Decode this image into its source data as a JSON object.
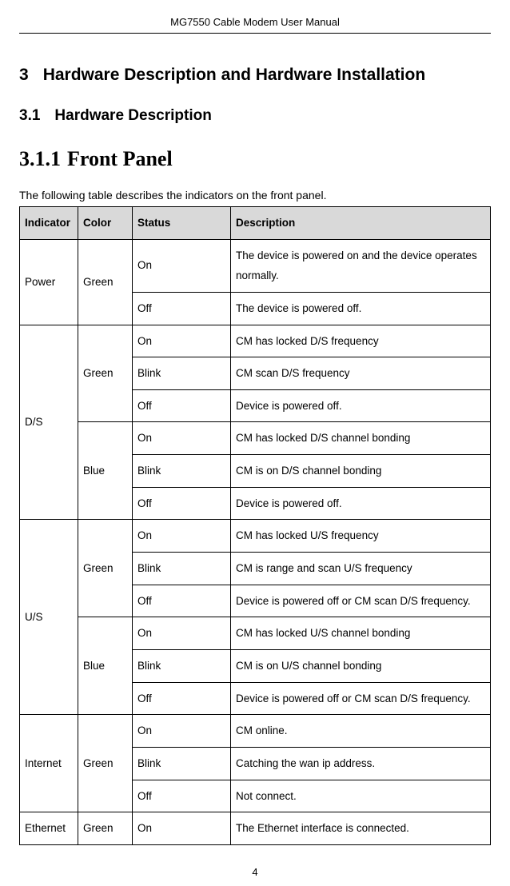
{
  "header": "MG7550 Cable Modem User Manual",
  "section_number": "3",
  "section_title": "Hardware Description and Hardware Installation",
  "subsection_number": "3.1",
  "subsection_title": "Hardware Description",
  "subsubsection_number": "3.1.1",
  "subsubsection_title": "Front Panel",
  "intro_text": "The following table describes the indicators on the front panel.",
  "columns": {
    "indicator": "Indicator",
    "color": "Color",
    "status": "Status",
    "description": "Description"
  },
  "cells": {
    "power": "Power",
    "green": "Green",
    "blue": "Blue",
    "ds": "D/S",
    "us": "U/S",
    "internet": "Internet",
    "ethernet": "Ethernet",
    "on": "On",
    "off": "Off",
    "blink": "Blink",
    "d_power_on": "The device is powered on and the device operates normally.",
    "d_power_off": "The device is powered off.",
    "d_ds_g_on": "CM has locked D/S frequency",
    "d_ds_g_blink": "CM scan D/S frequency",
    "d_ds_g_off": "Device is powered off.",
    "d_ds_b_on": "CM has locked D/S channel bonding",
    "d_ds_b_blink": "CM is on D/S channel bonding",
    "d_ds_b_off": "Device is powered off.",
    "d_us_g_on": "CM has locked U/S frequency",
    "d_us_g_blink": "CM is range and scan U/S frequency",
    "d_us_g_off": "Device is powered off or CM scan D/S frequency.",
    "d_us_b_on": "CM has locked U/S channel bonding",
    "d_us_b_blink": "CM is on U/S channel bonding",
    "d_us_b_off": "Device is powered off or CM scan D/S frequency.",
    "d_int_on": "CM online.",
    "d_int_blink": "Catching the wan ip address.",
    "d_int_off": "Not connect.",
    "d_eth_on": "The Ethernet interface is connected."
  },
  "page_number": "4"
}
